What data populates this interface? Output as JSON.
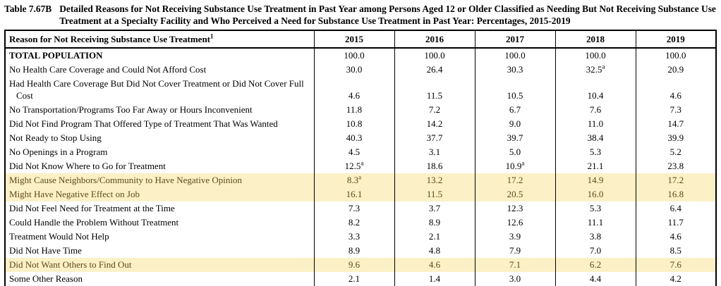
{
  "title": {
    "prefix": "Table 7.67B",
    "text": "Detailed Reasons for Not Receiving Substance Use Treatment in Past Year among Persons Aged 12 or Older Classified as Needing But Not Receiving Substance Use Treatment at a Specialty Facility and Who Perceived a Need for Substance Use Treatment in Past Year: Percentages, 2015-2019"
  },
  "colors": {
    "highlight_bg": "#FCF0C6",
    "highlight_text": "#5C4A1B",
    "text": "#000000",
    "border": "#000000"
  },
  "table": {
    "header": {
      "reason": "Reason for Not Receiving Substance Use Treatment",
      "footnote_mark": "1",
      "years": [
        "2015",
        "2016",
        "2017",
        "2018",
        "2019"
      ]
    },
    "rows": [
      {
        "label": "TOTAL POPULATION",
        "bold": true,
        "highlight": false,
        "values": [
          "100.0",
          "100.0",
          "100.0",
          "100.0",
          "100.0"
        ]
      },
      {
        "label": "No Health Care Coverage and Could Not Afford Cost",
        "bold": false,
        "highlight": false,
        "values": [
          "30.0",
          "26.4",
          "30.3",
          "32.5^a",
          "20.9"
        ]
      },
      {
        "label": "Had Health Care Coverage But Did Not Cover Treatment or Did Not Cover Full Cost",
        "bold": false,
        "highlight": false,
        "values": [
          "4.6",
          "11.5",
          "10.5",
          "10.4",
          "4.6"
        ]
      },
      {
        "label": "No Transportation/Programs Too Far Away or Hours Inconvenient",
        "bold": false,
        "highlight": false,
        "values": [
          "11.8",
          "7.2",
          "6.7",
          "7.6",
          "7.3"
        ]
      },
      {
        "label": "Did Not Find Program That Offered Type of Treatment That Was Wanted",
        "bold": false,
        "highlight": false,
        "values": [
          "10.8",
          "14.2",
          "9.0",
          "11.0",
          "14.7"
        ]
      },
      {
        "label": "Not Ready to Stop Using",
        "bold": false,
        "highlight": false,
        "values": [
          "40.3",
          "37.7",
          "39.7",
          "38.4",
          "39.9"
        ]
      },
      {
        "label": "No Openings in a Program",
        "bold": false,
        "highlight": false,
        "values": [
          "4.5",
          "3.1",
          "5.0",
          "5.3",
          "5.2"
        ]
      },
      {
        "label": "Did Not Know Where to Go for Treatment",
        "bold": false,
        "highlight": false,
        "values": [
          "12.5^a",
          "18.6",
          "10.9^a",
          "21.1",
          "23.8"
        ]
      },
      {
        "label": "Might Cause Neighbors/Community to Have Negative Opinion",
        "bold": false,
        "highlight": true,
        "values": [
          "8.3^a",
          "13.2",
          "17.2",
          "14.9",
          "17.2"
        ]
      },
      {
        "label": "Might Have Negative Effect on Job",
        "bold": false,
        "highlight": true,
        "values": [
          "16.1",
          "11.5",
          "20.5",
          "16.0",
          "16.8"
        ]
      },
      {
        "label": "Did Not Feel Need for Treatment at the Time",
        "bold": false,
        "highlight": false,
        "values": [
          "7.3",
          "3.7",
          "12.3",
          "5.3",
          "6.4"
        ]
      },
      {
        "label": "Could Handle the Problem Without Treatment",
        "bold": false,
        "highlight": false,
        "values": [
          "8.2",
          "8.9",
          "12.6",
          "11.1",
          "11.7"
        ]
      },
      {
        "label": "Treatment Would Not Help",
        "bold": false,
        "highlight": false,
        "values": [
          "3.3",
          "2.1",
          "3.9",
          "3.8",
          "4.6"
        ]
      },
      {
        "label": "Did Not Have Time",
        "bold": false,
        "highlight": false,
        "values": [
          "8.9",
          "4.8",
          "7.9",
          "7.0",
          "8.5"
        ]
      },
      {
        "label": "Did Not Want Others to Find Out",
        "bold": false,
        "highlight": true,
        "values": [
          "9.6",
          "4.6",
          "7.1",
          "6.2",
          "7.6"
        ]
      },
      {
        "label": "Some Other Reason",
        "bold": false,
        "highlight": false,
        "values": [
          "2.1",
          "1.4",
          "3.0",
          "4.4",
          "4.2"
        ]
      }
    ]
  }
}
